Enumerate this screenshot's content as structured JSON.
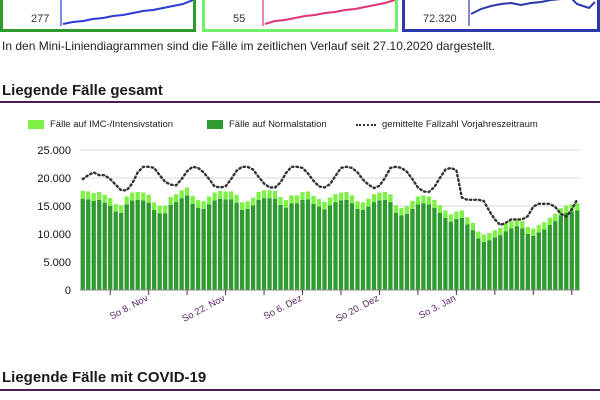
{
  "mini_cards": [
    {
      "value": "277",
      "line_color": "#2b3cd6"
    },
    {
      "value": "55",
      "line_color": "#e0337a"
    },
    {
      "value": "72.320",
      "line_color": "#2b3aa8"
    }
  ],
  "note": "In den Mini-Liniendiagrammen sind die Fälle im zeitlichen Verlauf seit 27.10.2020 dargestellt.",
  "section1_title": "Liegende Fälle gesamt",
  "section2_title": "Liegende Fälle mit COVID-19",
  "colors": {
    "icu": "#7ef046",
    "normal": "#2f9a2f",
    "previous_year": "#333333",
    "rule": "#4a1a55",
    "tick": "#5a2466"
  },
  "legend": {
    "icu": "Fälle auf IMC-/Intensivstation",
    "normal": "Fälle auf Normalstation",
    "previous_year": "gemittelte Fallzahl Vorjahreszeitraum"
  },
  "chart_data": {
    "type": "bar",
    "stacked": true,
    "title": "Liegende Fälle gesamt",
    "x_tick_labels": [
      "So 8. Nov",
      "So 22. Nov",
      "So 6. Dez",
      "So 20. Dez",
      "So 3. Jan"
    ],
    "y_tick_labels": [
      "0",
      "5.000",
      "10.000",
      "15.000",
      "20.000",
      "25.000"
    ],
    "ylim": [
      0,
      25000
    ],
    "y_ticks": [
      0,
      5000,
      10000,
      15000,
      20000,
      25000
    ],
    "grid": true,
    "legend_position": "top",
    "series": [
      {
        "name": "Fälle auf Normalstation",
        "type": "bar",
        "values": [
          16300,
          16200,
          15900,
          16100,
          15600,
          15000,
          14000,
          13800,
          15300,
          16000,
          16100,
          16000,
          15600,
          14300,
          13700,
          13700,
          15200,
          15700,
          16400,
          16900,
          15400,
          14700,
          14500,
          15300,
          16000,
          16300,
          16200,
          16200,
          15600,
          14300,
          14500,
          15100,
          16100,
          16400,
          16400,
          16300,
          15200,
          14700,
          15500,
          15500,
          16100,
          16200,
          15400,
          14900,
          14400,
          15100,
          15700,
          16000,
          16100,
          15500,
          14500,
          14300,
          14900,
          15700,
          16000,
          16100,
          15700,
          13800,
          13300,
          13600,
          14500,
          15300,
          15500,
          15300,
          14700,
          13800,
          12900,
          12200,
          12700,
          12900,
          11700,
          10700,
          9200,
          8600,
          8900,
          9400,
          9800,
          10500,
          11000,
          11400,
          11000,
          10000,
          9700,
          10300,
          10800,
          11600,
          12300,
          13300,
          13800,
          14000,
          14200
        ]
      },
      {
        "name": "Fälle auf IMC-/Intensivstation",
        "type": "bar",
        "values": [
          1400,
          1400,
          1400,
          1400,
          1400,
          1400,
          1350,
          1350,
          1400,
          1400,
          1400,
          1400,
          1400,
          1350,
          1350,
          1350,
          1400,
          1400,
          1400,
          1400,
          1400,
          1350,
          1350,
          1400,
          1400,
          1400,
          1400,
          1400,
          1400,
          1350,
          1350,
          1400,
          1400,
          1400,
          1400,
          1400,
          1400,
          1350,
          1400,
          1400,
          1400,
          1400,
          1400,
          1350,
          1350,
          1400,
          1400,
          1400,
          1400,
          1400,
          1350,
          1350,
          1400,
          1400,
          1400,
          1400,
          1400,
          1350,
          1350,
          1350,
          1400,
          1400,
          1400,
          1400,
          1400,
          1350,
          1300,
          1300,
          1300,
          1300,
          1300,
          1300,
          1250,
          1250,
          1250,
          1250,
          1300,
          1300,
          1300,
          1300,
          1300,
          1250,
          1250,
          1300,
          1300,
          1300,
          1300,
          1300,
          1300,
          1300,
          1300
        ]
      },
      {
        "name": "gemittelte Fallzahl Vorjahreszeitraum",
        "type": "line",
        "style": "dotted",
        "values": [
          19800,
          20500,
          21000,
          20500,
          20500,
          19800,
          18800,
          17800,
          17800,
          19000,
          21000,
          22000,
          22000,
          21800,
          20500,
          19300,
          18800,
          18700,
          19800,
          21200,
          22000,
          21800,
          21000,
          19800,
          18500,
          18300,
          18500,
          19800,
          21300,
          22000,
          22000,
          21500,
          20200,
          19000,
          18300,
          18300,
          19200,
          20900,
          22000,
          22000,
          21800,
          20800,
          19500,
          18500,
          18300,
          18900,
          20400,
          21800,
          22000,
          21800,
          21000,
          19700,
          18800,
          18200,
          18600,
          20000,
          21800,
          22000,
          21800,
          21100,
          19800,
          18300,
          17600,
          17500,
          18400,
          20000,
          21500,
          21800,
          21400,
          16500,
          16100,
          16100,
          16100,
          15900,
          14100,
          12600,
          11600,
          12000,
          12600,
          12600,
          12600,
          13200,
          14900,
          15400,
          15400,
          15400,
          14800,
          13600,
          13100,
          14400,
          16200
        ]
      }
    ]
  }
}
